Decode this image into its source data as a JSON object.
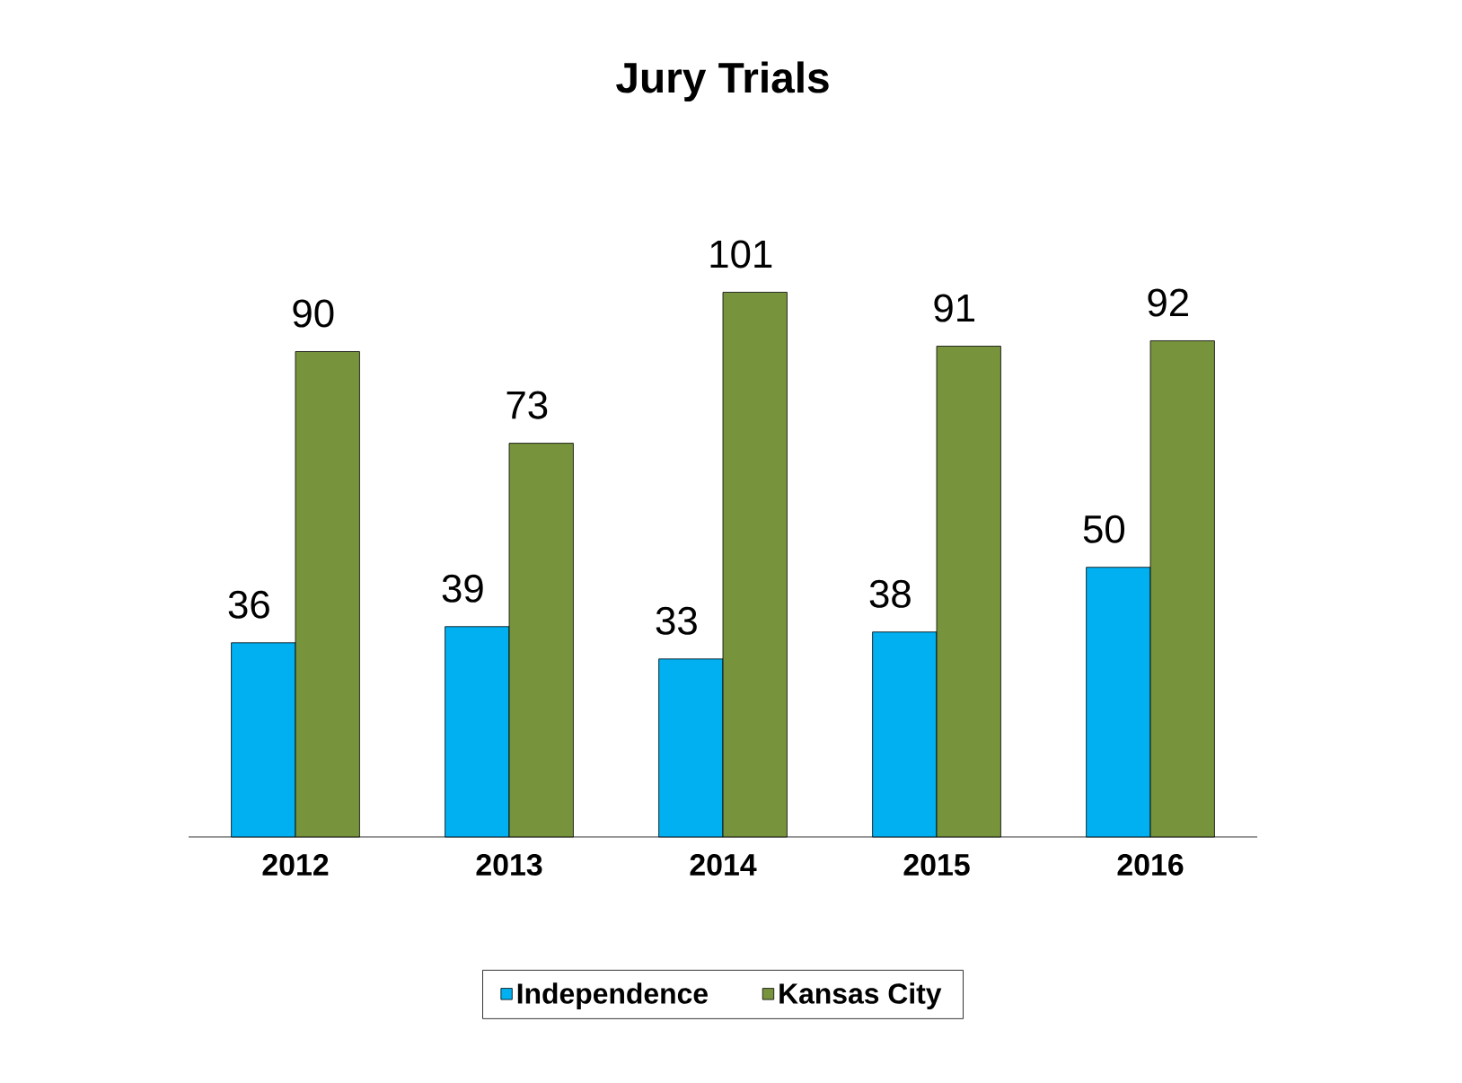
{
  "chart_data": {
    "type": "bar",
    "title": "Jury Trials",
    "categories": [
      "2012",
      "2013",
      "2014",
      "2015",
      "2016"
    ],
    "series": [
      {
        "name": "Independence",
        "color": "#00b0f0",
        "values": [
          36,
          39,
          33,
          38,
          50
        ]
      },
      {
        "name": "Kansas City",
        "color": "#77933c",
        "values": [
          90,
          73,
          101,
          91,
          92
        ]
      }
    ],
    "data_labels": true,
    "legend": "bottom"
  }
}
